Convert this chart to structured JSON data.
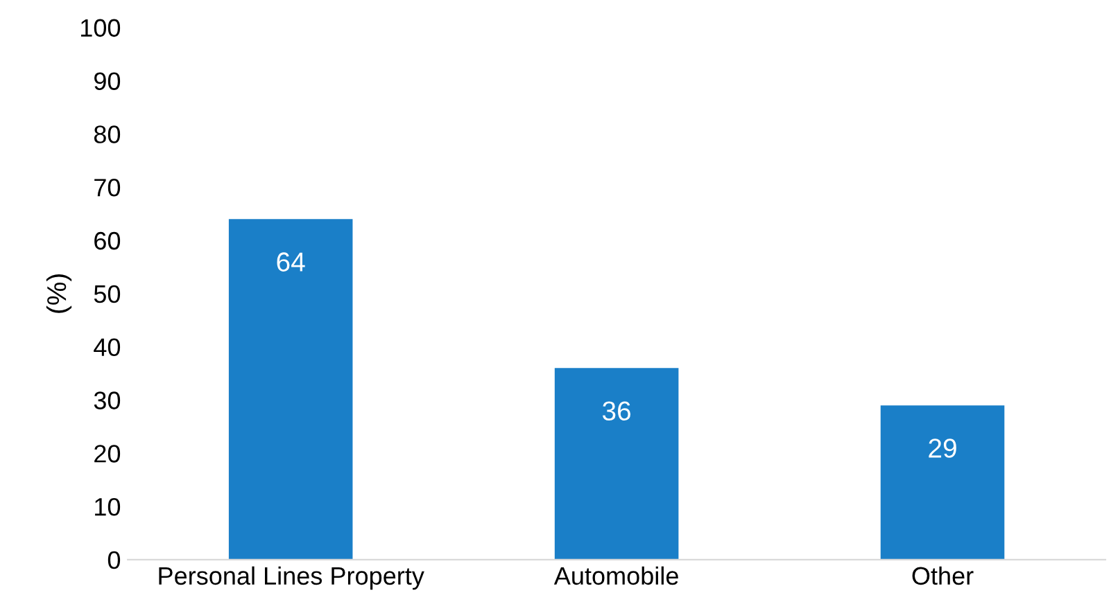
{
  "chart_data": {
    "type": "bar",
    "ylabel": "(%)",
    "categories": [
      "Personal Lines Property",
      "Automobile",
      "Other"
    ],
    "values": [
      64,
      36,
      29
    ],
    "color": "#1a7fc8",
    "ylim": [
      0,
      100
    ],
    "yticks": [
      0,
      10,
      20,
      30,
      40,
      50,
      60,
      70,
      80,
      90,
      100
    ],
    "grid": false,
    "data_labels": true
  }
}
